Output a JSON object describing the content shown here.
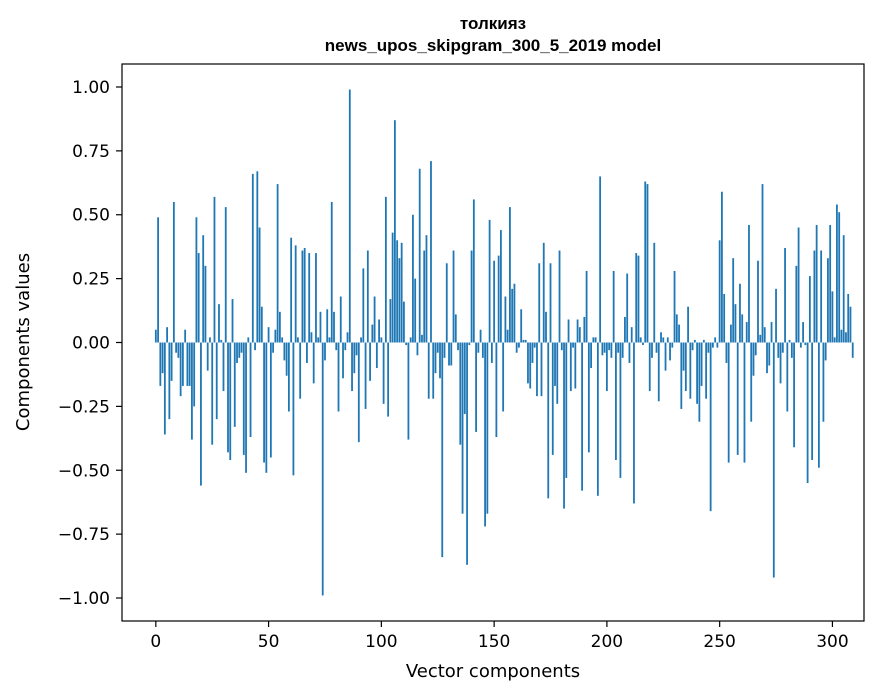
{
  "chart_data": {
    "type": "bar",
    "title_line1": "толкияз",
    "title_line2": "news_upos_skipgram_300_5_2019 model",
    "xlabel": "Vector components",
    "ylabel": "Components values",
    "xlim": [
      -15,
      314
    ],
    "ylim": [
      -1.09,
      1.09
    ],
    "xticks": [
      0,
      50,
      100,
      150,
      200,
      250,
      300
    ],
    "xtick_labels": [
      "0",
      "50",
      "100",
      "150",
      "200",
      "250",
      "300"
    ],
    "yticks": [
      -1.0,
      -0.75,
      -0.5,
      -0.25,
      0.0,
      0.25,
      0.5,
      0.75,
      1.0
    ],
    "ytick_labels": [
      "−1.00",
      "−0.75",
      "−0.50",
      "−0.25",
      "0.00",
      "0.25",
      "0.50",
      "0.75",
      "1.00"
    ],
    "bar_color": "#1f77b4",
    "values": [
      0.05,
      0.49,
      -0.17,
      -0.12,
      -0.36,
      0.06,
      -0.3,
      -0.15,
      0.55,
      -0.04,
      -0.06,
      -0.21,
      -0.17,
      0.05,
      -0.17,
      -0.17,
      -0.38,
      -0.25,
      0.49,
      0.35,
      -0.56,
      0.42,
      0.3,
      -0.11,
      0.02,
      -0.4,
      0.57,
      -0.3,
      0.15,
      0.01,
      -0.19,
      0.53,
      -0.43,
      -0.46,
      0.17,
      -0.33,
      -0.08,
      -0.06,
      -0.04,
      -0.44,
      -0.51,
      0.02,
      -0.37,
      0.66,
      -0.03,
      0.67,
      0.45,
      0.14,
      -0.47,
      -0.51,
      0.06,
      -0.45,
      -0.04,
      0.05,
      0.62,
      0.12,
      0.02,
      -0.07,
      -0.13,
      -0.27,
      0.41,
      -0.52,
      0.38,
      0.02,
      -0.22,
      0.36,
      0.37,
      -0.08,
      0.35,
      0.04,
      -0.16,
      0.35,
      0.02,
      0.12,
      -0.99,
      -0.07,
      0.13,
      0.02,
      0.55,
      0.12,
      -0.03,
      -0.27,
      0.18,
      -0.14,
      -0.03,
      0.04,
      0.99,
      -0.19,
      -0.12,
      -0.05,
      -0.39,
      0.02,
      0.29,
      -0.26,
      0.36,
      -0.15,
      0.07,
      0.18,
      -0.1,
      0.09,
      0.02,
      -0.24,
      0.57,
      -0.29,
      0.17,
      0.43,
      0.87,
      0.4,
      0.33,
      0.39,
      0.16,
      -0.01,
      -0.38,
      0.02,
      0.5,
      0.25,
      -0.05,
      0.68,
      0.03,
      0.36,
      0.42,
      -0.22,
      0.71,
      -0.22,
      -0.12,
      -0.04,
      -0.14,
      -0.84,
      -0.06,
      0.31,
      -0.09,
      -0.09,
      0.36,
      0.11,
      -0.03,
      -0.4,
      -0.67,
      -0.28,
      -0.87,
      -0.01,
      0.36,
      0.56,
      -0.35,
      -0.04,
      0.05,
      -0.06,
      -0.72,
      -0.67,
      0.48,
      -0.08,
      0.32,
      -0.37,
      0.34,
      0.44,
      -0.27,
      0.18,
      0.05,
      0.53,
      0.21,
      0.23,
      -0.04,
      -0.02,
      0.13,
      0.01,
      0.01,
      -0.16,
      -0.18,
      -0.08,
      -0.02,
      -0.21,
      0.31,
      -0.21,
      0.39,
      0.12,
      -0.61,
      0.31,
      -0.44,
      -0.17,
      -0.24,
      0.36,
      -0.03,
      -0.65,
      -0.53,
      0.09,
      -0.19,
      -0.02,
      -0.18,
      0.09,
      0.06,
      -0.58,
      0.1,
      0.28,
      -0.43,
      -0.1,
      0.02,
      0.02,
      -0.6,
      0.65,
      -0.05,
      -0.04,
      -0.19,
      -0.03,
      -0.06,
      0.28,
      -0.46,
      -0.04,
      -0.53,
      -0.06,
      0.1,
      0.27,
      -0.08,
      0.06,
      -0.63,
      0.35,
      0.34,
      0.02,
      -0.01,
      0.63,
      0.62,
      -0.19,
      -0.06,
      0.39,
      -0.04,
      -0.23,
      0.04,
      0.02,
      -0.11,
      0.02,
      -0.07,
      -0.02,
      0.28,
      0.11,
      0.07,
      -0.26,
      -0.11,
      -0.19,
      0.14,
      -0.22,
      -0.03,
      0.01,
      -0.24,
      -0.31,
      -0.17,
      0.01,
      -0.22,
      -0.04,
      -0.66,
      -0.02,
      0.02,
      -0.02,
      0.4,
      0.59,
      0.19,
      -0.08,
      -0.47,
      0.07,
      0.33,
      0.15,
      -0.44,
      0.23,
      0.11,
      -0.47,
      0.08,
      0.46,
      -0.31,
      -0.13,
      -0.05,
      0.32,
      0.03,
      0.62,
      0.06,
      -0.12,
      -0.09,
      0.08,
      -0.92,
      0.21,
      -0.06,
      -0.16,
      -0.04,
      0.37,
      -0.27,
      0.01,
      -0.06,
      -0.41,
      0.3,
      0.45,
      -0.02,
      0.08,
      -0.01,
      -0.55,
      0.26,
      -0.46,
      0.36,
      0.46,
      -0.49,
      0.36,
      -0.31,
      -0.07,
      0.33,
      0.46,
      0.2,
      0.02,
      0.54,
      0.51,
      0.05,
      0.42,
      0.04,
      0.19,
      0.14,
      -0.06
    ]
  }
}
